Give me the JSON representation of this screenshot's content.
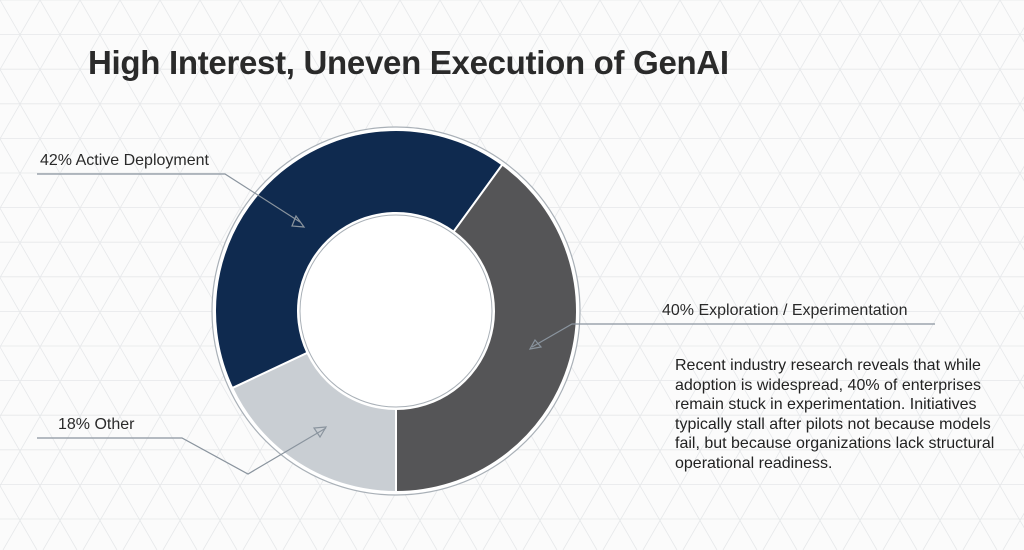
{
  "title": "High Interest, Uneven Execution of GenAI",
  "chart_data": {
    "type": "pie",
    "donut": true,
    "title": "High Interest, Uneven Execution of GenAI",
    "slices": [
      {
        "label": "18% Other",
        "value": 18,
        "color": "#c9ced3"
      },
      {
        "label": "42% Active Deployment",
        "value": 42,
        "color": "#0f2a4f"
      },
      {
        "label": "40% Exploration / Experimentation",
        "value": 40,
        "color": "#555557"
      }
    ]
  },
  "description": "Recent industry research reveals that while adoption is widespread, 40% of enterprises remain stuck in experimentation. Initiatives typically stall after pilots not because models fail, but because organizations lack structural operational readiness."
}
